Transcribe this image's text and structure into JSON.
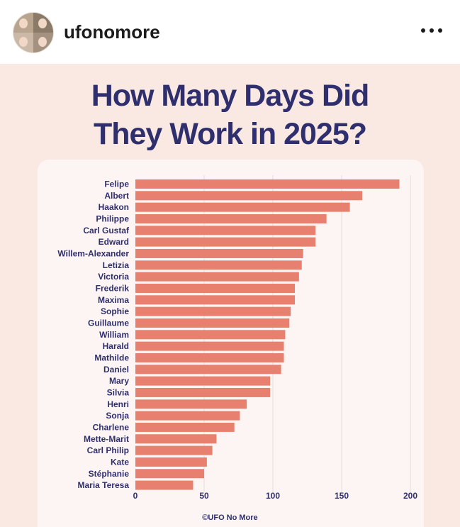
{
  "header": {
    "username": "ufonomore",
    "avatar_icon": "avatar-collage-icon",
    "more_icon": "more-options-icon"
  },
  "post": {
    "title_line1": "How Many Days Did",
    "title_line2": "They Work in 2025?",
    "credit": "©UFO No More"
  },
  "colors": {
    "bar": "#e8806f",
    "title": "#2f2f6e",
    "background": "#fae8e3",
    "card": "#fdf5f3",
    "grid": "#e6dcda"
  },
  "chart_data": {
    "type": "bar",
    "orientation": "horizontal",
    "title": "How Many Days Did They Work in 2025?",
    "xlabel": "",
    "ylabel": "",
    "xlim": [
      0,
      200
    ],
    "xticks": [
      0,
      50,
      100,
      150,
      200
    ],
    "grid": true,
    "categories": [
      "Felipe",
      "Albert",
      "Haakon",
      "Philippe",
      "Carl Gustaf",
      "Edward",
      "Willem-Alexander",
      "Letizia",
      "Victoria",
      "Frederik",
      "Maxima",
      "Sophie",
      "Guillaume",
      "William",
      "Harald",
      "Mathilde",
      "Daniel",
      "Mary",
      "Silvia",
      "Henri",
      "Sonja",
      "Charlene",
      "Mette-Marit",
      "Carl Philip",
      "Kate",
      "Stéphanie",
      "Maria Teresa"
    ],
    "values": [
      192,
      165,
      156,
      139,
      131,
      131,
      122,
      121,
      119,
      116,
      116,
      113,
      112,
      109,
      108,
      108,
      106,
      98,
      98,
      81,
      76,
      72,
      59,
      56,
      52,
      50,
      42
    ]
  }
}
